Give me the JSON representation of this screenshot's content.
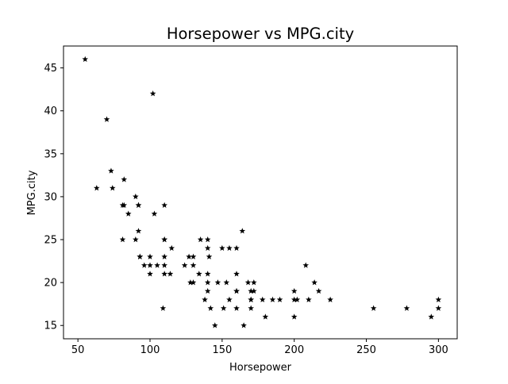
{
  "chart_data": {
    "type": "scatter",
    "title": "Horsepower vs MPG.city",
    "xlabel": "Horsepower",
    "ylabel": "MPG.city",
    "xlim": [
      40,
      313
    ],
    "ylim": [
      13.45,
      47.55
    ],
    "xticks": [
      50,
      100,
      150,
      200,
      250,
      300
    ],
    "yticks": [
      15,
      20,
      25,
      30,
      35,
      40,
      45
    ],
    "grid": false,
    "marker": "star",
    "color": "#000000",
    "series": [
      {
        "points": [
          [
            55,
            46
          ],
          [
            102,
            42
          ],
          [
            70,
            39
          ],
          [
            73,
            33
          ],
          [
            82,
            32
          ],
          [
            63,
            31
          ],
          [
            74,
            31
          ],
          [
            90,
            30
          ],
          [
            81,
            29
          ],
          [
            82,
            29
          ],
          [
            92,
            29
          ],
          [
            92,
            29
          ],
          [
            110,
            29
          ],
          [
            85,
            28
          ],
          [
            103,
            28
          ],
          [
            92,
            26
          ],
          [
            164,
            26
          ],
          [
            81,
            25
          ],
          [
            90,
            25
          ],
          [
            110,
            25
          ],
          [
            110,
            25
          ],
          [
            135,
            25
          ],
          [
            140,
            25
          ],
          [
            115,
            24
          ],
          [
            140,
            24
          ],
          [
            150,
            24
          ],
          [
            155,
            24
          ],
          [
            160,
            24
          ],
          [
            93,
            23
          ],
          [
            93,
            23
          ],
          [
            100,
            23
          ],
          [
            110,
            23
          ],
          [
            127,
            23
          ],
          [
            130,
            23
          ],
          [
            141,
            23
          ],
          [
            96,
            22
          ],
          [
            100,
            22
          ],
          [
            105,
            22
          ],
          [
            110,
            22
          ],
          [
            124,
            22
          ],
          [
            130,
            22
          ],
          [
            208,
            22
          ],
          [
            100,
            21
          ],
          [
            110,
            21
          ],
          [
            114,
            21
          ],
          [
            134,
            21
          ],
          [
            140,
            21
          ],
          [
            160,
            21
          ],
          [
            128,
            20
          ],
          [
            130,
            20
          ],
          [
            140,
            20
          ],
          [
            147,
            20
          ],
          [
            153,
            20
          ],
          [
            168,
            20
          ],
          [
            172,
            20
          ],
          [
            214,
            20
          ],
          [
            140,
            19
          ],
          [
            160,
            19
          ],
          [
            160,
            19
          ],
          [
            170,
            19
          ],
          [
            172,
            19
          ],
          [
            200,
            19
          ],
          [
            217,
            19
          ],
          [
            138,
            18
          ],
          [
            155,
            18
          ],
          [
            170,
            18
          ],
          [
            170,
            18
          ],
          [
            178,
            18
          ],
          [
            185,
            18
          ],
          [
            190,
            18
          ],
          [
            200,
            18
          ],
          [
            202,
            18
          ],
          [
            210,
            18
          ],
          [
            225,
            18
          ],
          [
            300,
            18
          ],
          [
            109,
            17
          ],
          [
            142,
            17
          ],
          [
            151,
            17
          ],
          [
            160,
            17
          ],
          [
            170,
            17
          ],
          [
            255,
            17
          ],
          [
            278,
            17
          ],
          [
            300,
            17
          ],
          [
            180,
            16
          ],
          [
            200,
            16
          ],
          [
            295,
            16
          ],
          [
            145,
            15
          ],
          [
            165,
            15
          ]
        ]
      }
    ]
  }
}
